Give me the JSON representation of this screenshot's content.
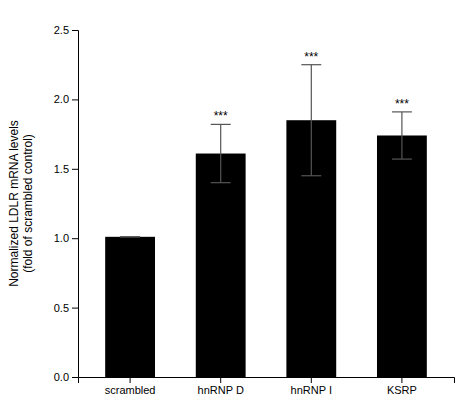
{
  "chart_data": {
    "type": "bar",
    "categories": [
      "scrambled",
      "hnRNP D",
      "hnRNP I",
      "KSRP"
    ],
    "values": [
      1.01,
      1.61,
      1.85,
      1.74
    ],
    "errors": [
      0.0,
      0.21,
      0.4,
      0.17
    ],
    "significance": [
      null,
      "***",
      "***",
      "***"
    ],
    "color": "#000000",
    "ylabel": "Normalized LDLR mRNA levels\n(fold of scrambled control)",
    "ylim": [
      0,
      2.5
    ],
    "yticks": [
      {
        "value": 0.0,
        "label": "0.0"
      },
      0.5,
      {
        "value": 1.0,
        "label": "1.0"
      },
      1.5,
      {
        "value": 2.0,
        "label": "2.0"
      },
      2.5
    ]
  }
}
